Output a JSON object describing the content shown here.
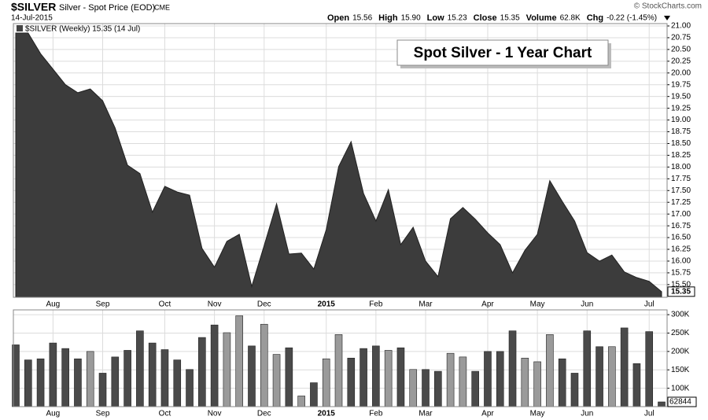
{
  "header": {
    "symbol": "$SILVER",
    "name": "Silver - Spot Price (EOD)",
    "exchange": "CME",
    "date": "14-Jul-2015",
    "quote": [
      {
        "label": "Open",
        "value": "15.56"
      },
      {
        "label": "High",
        "value": "15.90"
      },
      {
        "label": "Low",
        "value": "15.23"
      },
      {
        "label": "Close",
        "value": "15.35"
      },
      {
        "label": "Volume",
        "value": "62.8K"
      },
      {
        "label": "Chg",
        "value": "-0.22 (-1.45%)"
      }
    ],
    "copyright": "© StockCharts.com"
  },
  "chart_data": [
    {
      "type": "area",
      "legend": "$SILVER (Weekly) 15.35 (14 Jul)",
      "annotation": "Spot Silver - 1 Year Chart",
      "color": "#3c3c3c",
      "categories": [
        null,
        null,
        null,
        "Aug",
        null,
        null,
        null,
        "Sep",
        null,
        null,
        null,
        null,
        "Oct",
        null,
        null,
        null,
        "Nov",
        null,
        null,
        null,
        "Dec",
        null,
        null,
        null,
        null,
        "2015",
        null,
        null,
        null,
        "Feb",
        null,
        null,
        null,
        "Mar",
        null,
        null,
        null,
        null,
        "Apr",
        null,
        null,
        null,
        "May",
        null,
        null,
        null,
        "Jun",
        null,
        null,
        null,
        null,
        "Jul",
        null
      ],
      "values": [
        20.85,
        20.85,
        20.41,
        20.08,
        19.75,
        19.58,
        19.66,
        19.41,
        18.83,
        18.04,
        17.86,
        17.04,
        17.59,
        17.47,
        17.4,
        16.27,
        15.87,
        16.42,
        16.57,
        15.46,
        16.33,
        17.22,
        16.15,
        16.17,
        15.83,
        16.67,
        18.01,
        18.54,
        17.44,
        16.85,
        17.52,
        16.35,
        16.72,
        16.0,
        15.67,
        16.9,
        17.14,
        16.89,
        16.6,
        16.35,
        15.75,
        16.23,
        16.57,
        17.71,
        17.27,
        16.85,
        16.18,
        16.0,
        16.13,
        15.77,
        15.65,
        15.57,
        15.35
      ],
      "last_label": "15.35",
      "ylim": [
        15.23,
        21.05
      ],
      "yticks": [
        {
          "value": 15.5,
          "label": "15.50"
        },
        {
          "value": 15.75,
          "label": "15.75"
        },
        {
          "value": 16,
          "label": "16.00"
        },
        {
          "value": 16.25,
          "label": "16.25"
        },
        {
          "value": 16.5,
          "label": "16.50"
        },
        {
          "value": 16.75,
          "label": "16.75"
        },
        {
          "value": 17,
          "label": "17.00"
        },
        {
          "value": 17.25,
          "label": "17.25"
        },
        {
          "value": 17.5,
          "label": "17.50"
        },
        {
          "value": 17.75,
          "label": "17.75"
        },
        {
          "value": 18,
          "label": "18.00"
        },
        {
          "value": 18.25,
          "label": "18.25"
        },
        {
          "value": 18.5,
          "label": "18.50"
        },
        {
          "value": 18.75,
          "label": "18.75"
        },
        {
          "value": 19,
          "label": "19.00"
        },
        {
          "value": 19.25,
          "label": "19.25"
        },
        {
          "value": 19.5,
          "label": "19.50"
        },
        {
          "value": 19.75,
          "label": "19.75"
        },
        {
          "value": 20,
          "label": "20.00"
        },
        {
          "value": 20.25,
          "label": "20.25"
        },
        {
          "value": 20.5,
          "label": "20.50"
        },
        {
          "value": 20.75,
          "label": "20.75"
        },
        {
          "value": 21,
          "label": "21.00"
        }
      ],
      "grid": true
    },
    {
      "type": "bar",
      "values": [
        218000,
        177000,
        180000,
        223000,
        208000,
        180000,
        200000,
        141000,
        185000,
        203000,
        256000,
        223000,
        205000,
        177000,
        151000,
        238000,
        272000,
        251000,
        297000,
        215000,
        274000,
        192000,
        210000,
        79000,
        115000,
        180000,
        246000,
        182000,
        208000,
        215000,
        203000,
        210000,
        151000,
        151000,
        146000,
        195000,
        185000,
        146000,
        200000,
        200000,
        256000,
        182000,
        172000,
        246000,
        180000,
        141000,
        256000,
        213000,
        213000,
        264000,
        167000,
        254000,
        62844
      ],
      "colors": [
        "#4a4a4a",
        "#4a4a4a",
        "#4a4a4a",
        "#4a4a4a",
        "#4a4a4a",
        "#4a4a4a",
        "#9a9a9a",
        "#4a4a4a",
        "#4a4a4a",
        "#4a4a4a",
        "#4a4a4a",
        "#4a4a4a",
        "#4a4a4a",
        "#4a4a4a",
        "#4a4a4a",
        "#4a4a4a",
        "#4a4a4a",
        "#9a9a9a",
        "#9a9a9a",
        "#4a4a4a",
        "#9a9a9a",
        "#9a9a9a",
        "#4a4a4a",
        "#9a9a9a",
        "#4a4a4a",
        "#9a9a9a",
        "#9a9a9a",
        "#4a4a4a",
        "#4a4a4a",
        "#4a4a4a",
        "#9a9a9a",
        "#4a4a4a",
        "#9a9a9a",
        "#4a4a4a",
        "#4a4a4a",
        "#9a9a9a",
        "#9a9a9a",
        "#4a4a4a",
        "#4a4a4a",
        "#4a4a4a",
        "#4a4a4a",
        "#9a9a9a",
        "#9a9a9a",
        "#9a9a9a",
        "#4a4a4a",
        "#4a4a4a",
        "#4a4a4a",
        "#4a4a4a",
        "#9a9a9a",
        "#4a4a4a",
        "#4a4a4a",
        "#4a4a4a",
        "#4a4a4a"
      ],
      "last_label": "62844",
      "ylim": [
        50000,
        313000
      ],
      "yticks": [
        {
          "value": 100000,
          "label": "100K"
        },
        {
          "value": 150000,
          "label": "150K"
        },
        {
          "value": 200000,
          "label": "200K"
        },
        {
          "value": 250000,
          "label": "250K"
        },
        {
          "value": 300000,
          "label": "300K"
        }
      ],
      "grid": true
    }
  ]
}
